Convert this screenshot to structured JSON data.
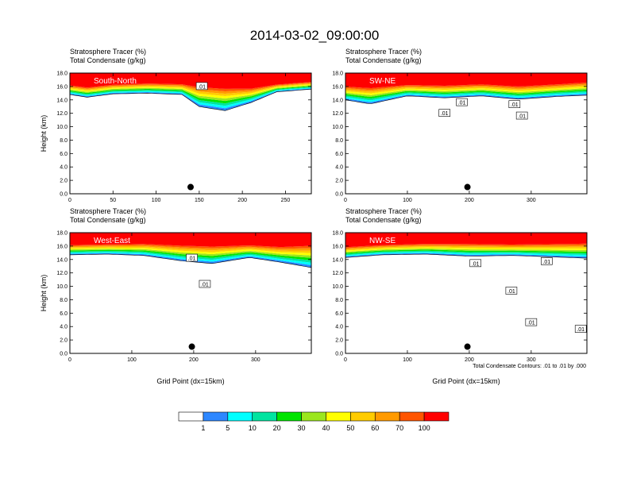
{
  "figure": {
    "title": "2014-03-02_09:00:00",
    "footnote": "Total Condensate Contours: .01 to .01 by .000"
  },
  "chart_data": [
    {
      "type": "heatmap",
      "panel_label": "South-North",
      "title_lines": [
        "Stratosphere Tracer   (%)",
        "Total Condensate   (g/kg)"
      ],
      "ylabel": "Height (km)",
      "xlabel": "",
      "xlim": [
        0,
        280
      ],
      "ylim": [
        0,
        18
      ],
      "x_ticks": [
        0,
        50,
        100,
        150,
        200,
        250
      ],
      "y_ticks": [
        "0.0",
        "2.0",
        "4.0",
        "6.0",
        "8.0",
        "10.0",
        "12.0",
        "14.0",
        "16.0",
        "18.0"
      ],
      "marker": {
        "x": 140,
        "y": 1.0
      },
      "contour_labels": [
        {
          "text": ".01",
          "x": 153,
          "y": 16.0
        }
      ],
      "tracer_profile": [
        {
          "x": 0,
          "base": 14.8,
          "red": 16.3
        },
        {
          "x": 20,
          "base": 14.4,
          "red": 16.0
        },
        {
          "x": 50,
          "base": 14.9,
          "red": 16.4
        },
        {
          "x": 90,
          "base": 15.0,
          "red": 16.6
        },
        {
          "x": 130,
          "base": 14.8,
          "red": 16.5
        },
        {
          "x": 150,
          "base": 13.0,
          "red": 16.2
        },
        {
          "x": 180,
          "base": 12.4,
          "red": 16.0
        },
        {
          "x": 210,
          "base": 13.6,
          "red": 15.9
        },
        {
          "x": 240,
          "base": 15.2,
          "red": 16.4
        },
        {
          "x": 280,
          "base": 15.6,
          "red": 16.8
        }
      ]
    },
    {
      "type": "heatmap",
      "panel_label": "SW-NE",
      "title_lines": [
        "Stratosphere Tracer   (%)",
        "Total Condensate   (g/kg)"
      ],
      "ylabel": "",
      "xlabel": "",
      "xlim": [
        0,
        390
      ],
      "ylim": [
        0,
        18
      ],
      "x_ticks": [
        0,
        100,
        200,
        300
      ],
      "y_ticks": [
        "0.0",
        "2.0",
        "4.0",
        "6.0",
        "8.0",
        "10.0",
        "12.0",
        "14.0",
        "16.0",
        "18.0"
      ],
      "marker": {
        "x": 197,
        "y": 1.0
      },
      "contour_labels": [
        {
          "text": ".01",
          "x": 188,
          "y": 13.6
        },
        {
          "x": 160,
          "y": 12.0,
          "text": ".01"
        },
        {
          "text": ".01",
          "x": 273,
          "y": 13.3
        },
        {
          "text": ".01",
          "x": 285,
          "y": 11.6
        }
      ],
      "tracer_profile": [
        {
          "x": 0,
          "base": 14.0,
          "red": 16.2
        },
        {
          "x": 40,
          "base": 13.4,
          "red": 16.0
        },
        {
          "x": 100,
          "base": 14.6,
          "red": 16.4
        },
        {
          "x": 160,
          "base": 14.3,
          "red": 16.3
        },
        {
          "x": 220,
          "base": 14.6,
          "red": 16.5
        },
        {
          "x": 280,
          "base": 14.1,
          "red": 16.2
        },
        {
          "x": 340,
          "base": 14.5,
          "red": 16.5
        },
        {
          "x": 390,
          "base": 14.7,
          "red": 16.8
        }
      ]
    },
    {
      "type": "heatmap",
      "panel_label": "West-East",
      "title_lines": [
        "Stratosphere Tracer   (%)",
        "Total Condensate   (g/kg)"
      ],
      "ylabel": "Height (km)",
      "xlabel": "Grid Point (dx=15km)",
      "xlim": [
        0,
        390
      ],
      "ylim": [
        0,
        18
      ],
      "x_ticks": [
        0,
        100,
        200,
        300
      ],
      "y_ticks": [
        "0.0",
        "2.0",
        "4.0",
        "6.0",
        "8.0",
        "10.0",
        "12.0",
        "14.0",
        "16.0",
        "18.0"
      ],
      "marker": {
        "x": 197,
        "y": 1.0
      },
      "contour_labels": [
        {
          "text": ".01",
          "x": 197,
          "y": 14.2
        },
        {
          "text": ".01",
          "x": 218,
          "y": 10.3
        }
      ],
      "tracer_profile": [
        {
          "x": 0,
          "base": 14.7,
          "red": 16.3
        },
        {
          "x": 60,
          "base": 14.8,
          "red": 16.4
        },
        {
          "x": 120,
          "base": 14.6,
          "red": 16.5
        },
        {
          "x": 180,
          "base": 13.8,
          "red": 16.3
        },
        {
          "x": 230,
          "base": 13.4,
          "red": 16.2
        },
        {
          "x": 290,
          "base": 14.3,
          "red": 16.3
        },
        {
          "x": 340,
          "base": 13.6,
          "red": 16.1
        },
        {
          "x": 390,
          "base": 12.8,
          "red": 16.4
        }
      ]
    },
    {
      "type": "heatmap",
      "panel_label": "NW-SE",
      "title_lines": [
        "Stratosphere Tracer   (%)",
        "Total Condensate   (g/kg)"
      ],
      "ylabel": "",
      "xlabel": "Grid Point (dx=15km)",
      "xlim": [
        0,
        390
      ],
      "ylim": [
        0,
        18
      ],
      "x_ticks": [
        0,
        100,
        200,
        300
      ],
      "y_ticks": [
        "0.0",
        "2.0",
        "4.0",
        "6.0",
        "8.0",
        "10.0",
        "12.0",
        "14.0",
        "16.0",
        "18.0"
      ],
      "marker": {
        "x": 197,
        "y": 1.0
      },
      "contour_labels": [
        {
          "text": ".01",
          "x": 210,
          "y": 13.4
        },
        {
          "text": ".01",
          "x": 325,
          "y": 13.7
        },
        {
          "text": ".01",
          "x": 268,
          "y": 9.3
        },
        {
          "text": ".01",
          "x": 300,
          "y": 4.6
        },
        {
          "text": ".01",
          "x": 380,
          "y": 3.6
        }
      ],
      "tracer_profile": [
        {
          "x": 0,
          "base": 14.3,
          "red": 16.0
        },
        {
          "x": 60,
          "base": 14.7,
          "red": 16.3
        },
        {
          "x": 130,
          "base": 14.8,
          "red": 16.5
        },
        {
          "x": 200,
          "base": 14.5,
          "red": 16.5
        },
        {
          "x": 270,
          "base": 14.6,
          "red": 16.4
        },
        {
          "x": 330,
          "base": 14.4,
          "red": 16.5
        },
        {
          "x": 390,
          "base": 14.2,
          "red": 16.6
        }
      ]
    }
  ],
  "colorbar": {
    "labels": [
      "1",
      "5",
      "10",
      "20",
      "30",
      "40",
      "50",
      "60",
      "70",
      "100"
    ],
    "colors": [
      "#ffffff",
      "#2d87ff",
      "#00ffff",
      "#00e4a0",
      "#00e400",
      "#9be61e",
      "#ffff00",
      "#ffcc00",
      "#ff9a00",
      "#ff5500",
      "#ff0000"
    ]
  }
}
